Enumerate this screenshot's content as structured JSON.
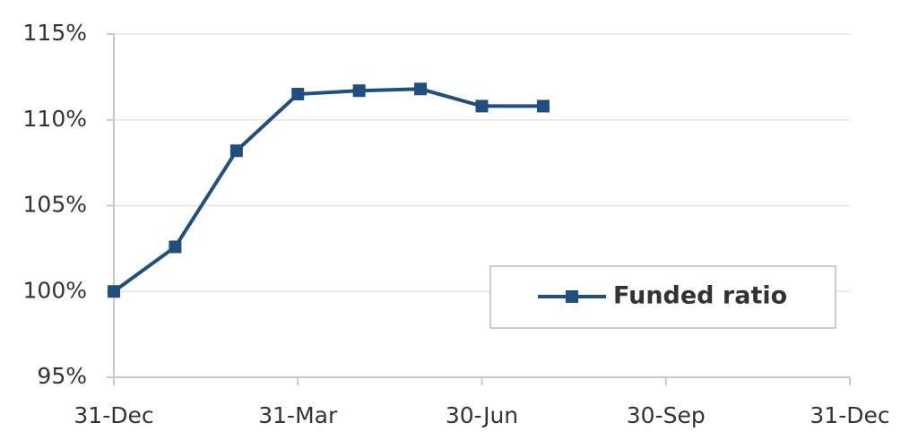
{
  "chart_data": {
    "type": "line",
    "categories": [
      "31-Dec",
      null,
      null,
      "31-Mar",
      null,
      null,
      "30-Jun",
      null,
      null,
      "30-Sep",
      null,
      null,
      "31-Dec"
    ],
    "series": [
      {
        "name": "Funded ratio",
        "color": "#1f4e7f",
        "values": [
          100.0,
          102.6,
          108.2,
          111.5,
          111.7,
          111.8,
          110.8,
          110.8,
          null,
          null,
          null,
          null,
          null
        ]
      }
    ],
    "ylim": [
      95,
      115
    ],
    "yticks": [
      {
        "value": 95,
        "label": "95%"
      },
      {
        "value": 100,
        "label": "100%"
      },
      {
        "value": 105,
        "label": "105%"
      },
      {
        "value": 110,
        "label": "110%"
      },
      {
        "value": 115,
        "label": "115%"
      }
    ],
    "grid": true,
    "legend": "bottom-right"
  }
}
